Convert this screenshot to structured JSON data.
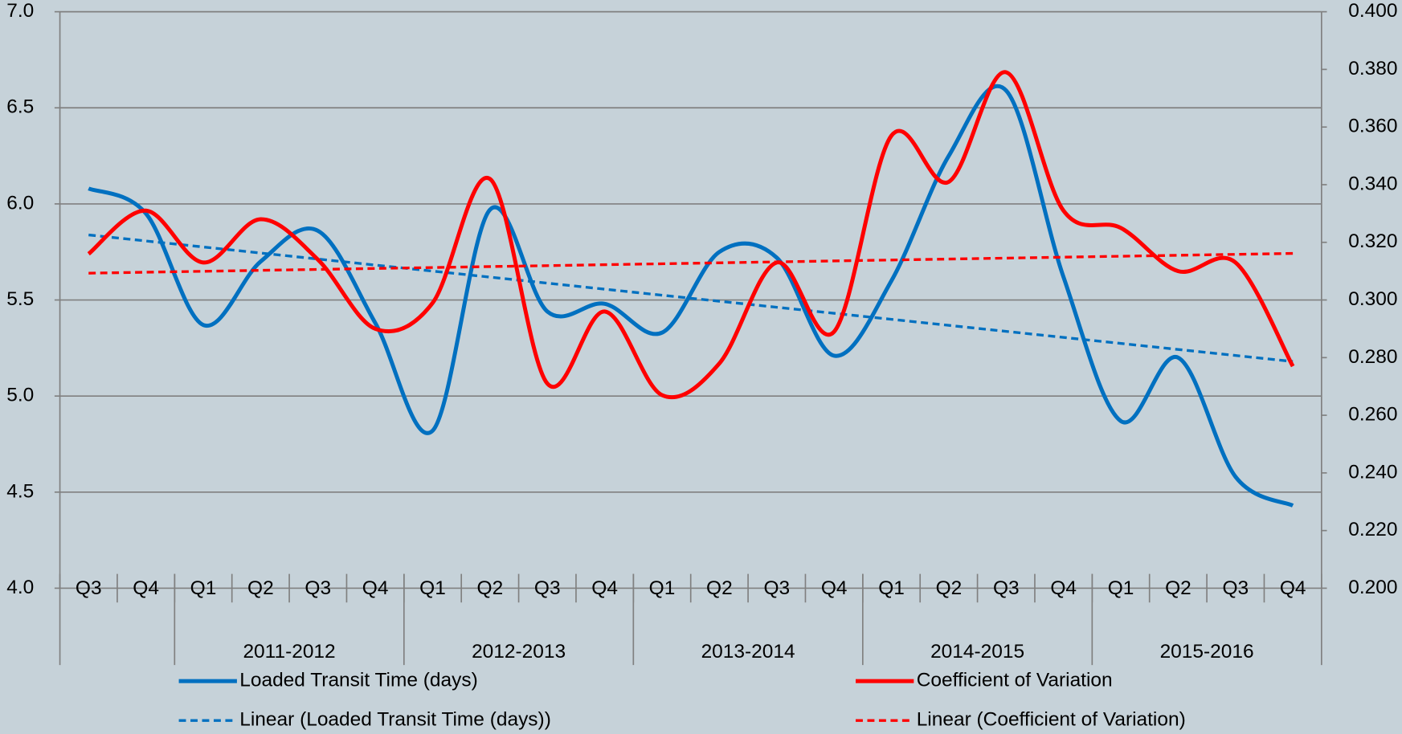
{
  "chart_data": {
    "type": "line",
    "categories": [
      "Q3",
      "Q4",
      "Q1",
      "Q2",
      "Q3",
      "Q4",
      "Q1",
      "Q2",
      "Q3",
      "Q4",
      "Q1",
      "Q2",
      "Q3",
      "Q4",
      "Q1",
      "Q2",
      "Q3",
      "Q4",
      "Q1",
      "Q2",
      "Q3",
      "Q4"
    ],
    "category_groups": [
      {
        "label": null,
        "count": 2
      },
      {
        "label": "2011-2012",
        "count": 4
      },
      {
        "label": "2012-2013",
        "count": 4
      },
      {
        "label": "2013-2014",
        "count": 4
      },
      {
        "label": "2014-2015",
        "count": 4
      },
      {
        "label": "2015-2016",
        "count": 4
      }
    ],
    "series": [
      {
        "name": "Loaded Transit Time (days)",
        "color": "#0070c0",
        "axis": "y",
        "values": [
          6.08,
          5.95,
          5.37,
          5.7,
          5.86,
          5.38,
          4.82,
          5.97,
          5.44,
          5.48,
          5.33,
          5.75,
          5.72,
          5.21,
          5.6,
          6.25,
          6.59,
          5.62,
          4.87,
          5.2,
          4.58,
          4.43
        ],
        "trendline": {
          "name": "Linear (Loaded Transit Time (days))"
        }
      },
      {
        "name": "Coefficient of Variation",
        "color": "#ff0000",
        "axis": "y2",
        "values": [
          0.316,
          0.331,
          0.313,
          0.328,
          0.314,
          0.29,
          0.299,
          0.342,
          0.271,
          0.296,
          0.267,
          0.278,
          0.313,
          0.289,
          0.357,
          0.341,
          0.379,
          0.331,
          0.325,
          0.31,
          0.313,
          0.277
        ],
        "trendline": {
          "name": "Linear (Coefficient of Variation)"
        }
      }
    ],
    "ylim": [
      4.0,
      7.0
    ],
    "yticks": [
      {
        "value": 4.0,
        "label": "4.0"
      },
      {
        "value": 4.5,
        "label": "4.5"
      },
      {
        "value": 5.0,
        "label": "5.0"
      },
      {
        "value": 5.5,
        "label": "5.5"
      },
      {
        "value": 6.0,
        "label": "6.0"
      },
      {
        "value": 6.5,
        "label": "6.5"
      },
      {
        "value": 7.0,
        "label": "7.0"
      }
    ],
    "y2lim": [
      0.2,
      0.4
    ],
    "y2ticks": [
      {
        "value": 0.2,
        "label": "0.200"
      },
      {
        "value": 0.22,
        "label": "0.220"
      },
      {
        "value": 0.24,
        "label": "0.240"
      },
      {
        "value": 0.26,
        "label": "0.260"
      },
      {
        "value": 0.28,
        "label": "0.280"
      },
      {
        "value": 0.3,
        "label": "0.300"
      },
      {
        "value": 0.32,
        "label": "0.320"
      },
      {
        "value": 0.34,
        "label": "0.340"
      },
      {
        "value": 0.36,
        "label": "0.360"
      },
      {
        "value": 0.38,
        "label": "0.380"
      },
      {
        "value": 0.4,
        "label": "0.400"
      }
    ],
    "grid": true,
    "smooth": true,
    "legend": "bottom"
  }
}
